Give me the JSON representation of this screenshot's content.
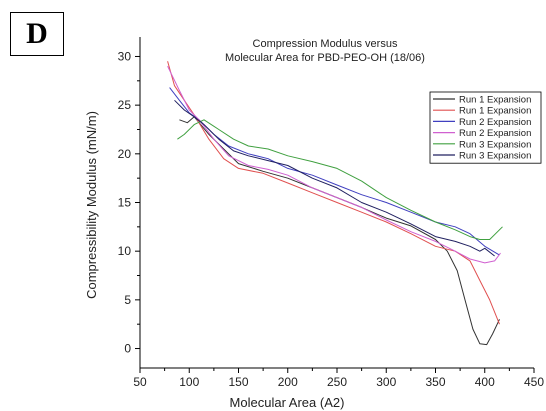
{
  "panel_label": "D",
  "chart_data": {
    "type": "line",
    "title": "Compression Modulus versus",
    "subtitle": "Molecular Area for PBD-PEO-OH (18/06)",
    "xlabel": "Molecular Area (A2)",
    "ylabel": "Compressibility Modulus (mN/m)",
    "xlim": [
      50,
      450
    ],
    "ylim": [
      -2,
      32
    ],
    "xticks": [
      50,
      100,
      150,
      200,
      250,
      300,
      350,
      400,
      450
    ],
    "yticks": [
      0,
      5,
      10,
      15,
      20,
      25,
      30
    ],
    "grid": false,
    "legend_position": "top-right",
    "series": [
      {
        "name": "Run 1 Expansion",
        "color": "#333333",
        "x": [
          90,
          98,
          105,
          120,
          135,
          150,
          175,
          200,
          225,
          250,
          275,
          300,
          325,
          350,
          362,
          372,
          380,
          388,
          395,
          402,
          408,
          415
        ],
        "y": [
          23.5,
          23.2,
          23.8,
          22.0,
          20.5,
          19.0,
          18.2,
          17.5,
          16.5,
          15.5,
          14.5,
          13.4,
          12.6,
          11.2,
          10.0,
          8.0,
          5.0,
          2.0,
          0.5,
          0.4,
          1.5,
          3.0
        ]
      },
      {
        "name": "Run 1 Expansion",
        "color": "#e05050",
        "x": [
          78,
          85,
          95,
          105,
          120,
          135,
          150,
          175,
          200,
          225,
          250,
          275,
          300,
          325,
          350,
          370,
          385,
          395,
          405,
          415
        ],
        "y": [
          29.5,
          27.0,
          25.5,
          24.0,
          21.5,
          19.5,
          18.5,
          18.0,
          17.0,
          16.0,
          15.0,
          14.0,
          13.0,
          11.8,
          10.5,
          10.0,
          9.0,
          7.0,
          5.0,
          2.5
        ]
      },
      {
        "name": "Run 2 Expansion",
        "color": "#4040c0",
        "x": [
          80,
          90,
          100,
          110,
          125,
          140,
          160,
          180,
          200,
          225,
          250,
          275,
          300,
          325,
          350,
          370,
          385,
          400,
          415
        ],
        "y": [
          26.8,
          25.5,
          24.2,
          23.5,
          22.0,
          20.8,
          20.0,
          19.5,
          18.5,
          17.8,
          16.8,
          15.8,
          15.0,
          14.0,
          13.0,
          12.5,
          11.8,
          10.5,
          9.6
        ]
      },
      {
        "name": "Run 2 Expansion",
        "color": "#d060d0",
        "x": [
          78,
          90,
          100,
          110,
          125,
          140,
          160,
          180,
          200,
          225,
          250,
          275,
          300,
          325,
          350,
          370,
          385,
          400,
          410,
          416
        ],
        "y": [
          29.0,
          26.5,
          24.5,
          23.5,
          21.5,
          19.8,
          18.8,
          18.4,
          17.8,
          16.5,
          15.5,
          14.5,
          13.2,
          12.0,
          11.0,
          10.0,
          9.2,
          8.8,
          9.0,
          9.8
        ]
      },
      {
        "name": "Run 3 Expansion",
        "color": "#40a040",
        "x": [
          88,
          95,
          105,
          115,
          130,
          145,
          160,
          180,
          200,
          225,
          250,
          275,
          300,
          325,
          350,
          370,
          385,
          395,
          405,
          418
        ],
        "y": [
          21.5,
          22.0,
          23.0,
          23.5,
          22.5,
          21.5,
          20.8,
          20.5,
          19.8,
          19.2,
          18.5,
          17.2,
          15.5,
          14.2,
          13.0,
          12.2,
          11.5,
          11.2,
          11.2,
          12.5
        ]
      },
      {
        "name": "Run 3 Expansion",
        "color": "#202060",
        "x": [
          85,
          95,
          105,
          115,
          130,
          145,
          160,
          180,
          200,
          225,
          250,
          275,
          300,
          325,
          350,
          370,
          385,
          395,
          400,
          410
        ],
        "y": [
          25.5,
          24.5,
          23.8,
          23.0,
          21.5,
          20.3,
          19.8,
          19.3,
          18.8,
          17.5,
          16.5,
          15.0,
          14.0,
          12.8,
          11.5,
          11.0,
          10.5,
          10.0,
          10.3,
          9.5
        ]
      }
    ]
  }
}
